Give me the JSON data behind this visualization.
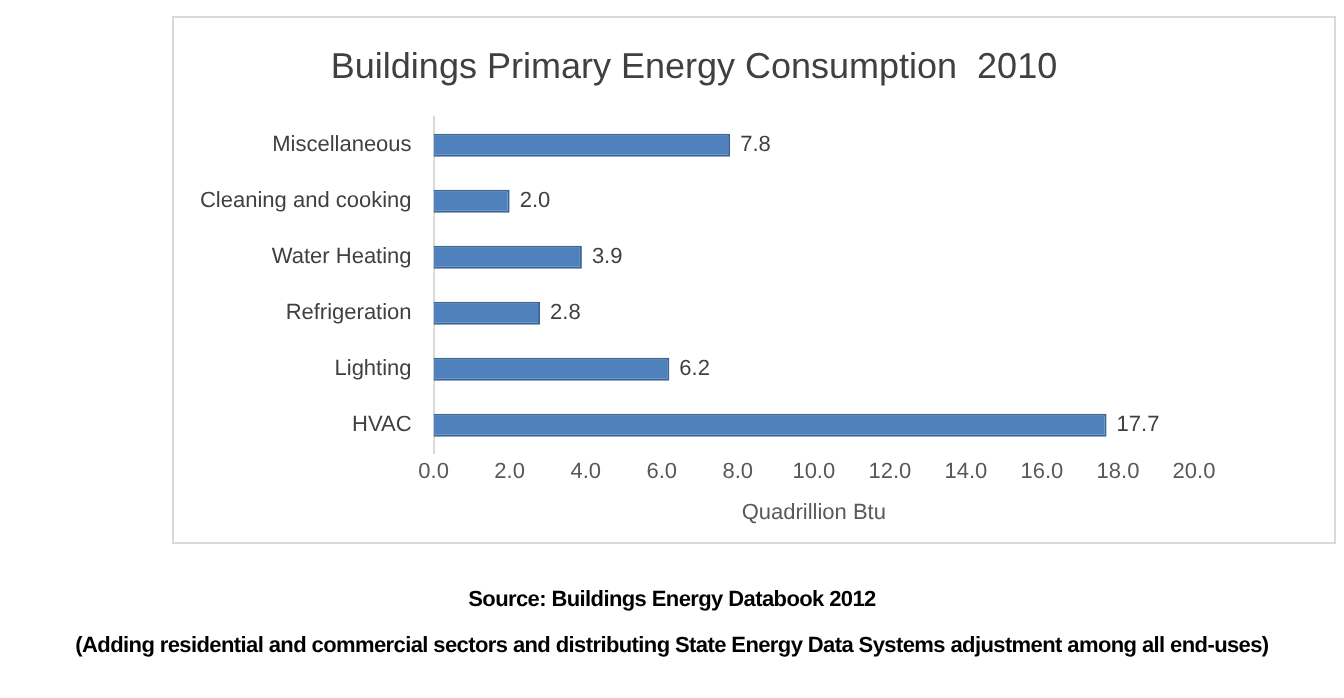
{
  "chart_data": {
    "type": "bar",
    "orientation": "horizontal",
    "title": "Buildings Primary Energy Consumption  2010",
    "xlabel": "Quadrillion Btu",
    "categories": [
      "Miscellaneous",
      "Cleaning and cooking",
      "Water Heating",
      "Refrigeration",
      "Lighting",
      "HVAC"
    ],
    "values": [
      7.8,
      2.0,
      3.9,
      2.8,
      6.2,
      17.7
    ],
    "color": "#4f81bd",
    "xlim": [
      0,
      20
    ],
    "xticks": [
      {
        "value": 0,
        "label": "0.0"
      },
      {
        "value": 2,
        "label": "2.0"
      },
      {
        "value": 4,
        "label": "4.0"
      },
      {
        "value": 6,
        "label": "6.0"
      },
      {
        "value": 8,
        "label": "8.0"
      },
      {
        "value": 10,
        "label": "10.0"
      },
      {
        "value": 12,
        "label": "12.0"
      },
      {
        "value": 14,
        "label": "14.0"
      },
      {
        "value": 16,
        "label": "16.0"
      },
      {
        "value": 18,
        "label": "18.0"
      },
      {
        "value": 20,
        "label": "20.0"
      }
    ],
    "value_labels": [
      "7.8",
      "2.0",
      "3.9",
      "2.8",
      "6.2",
      "17.7"
    ],
    "grid": false,
    "legend": false,
    "annotations": [
      "Source: Buildings Energy Databook 2012",
      "(Adding residential and commercial sectors and distributing State Energy Data Systems adjustment among all end-uses)"
    ]
  }
}
